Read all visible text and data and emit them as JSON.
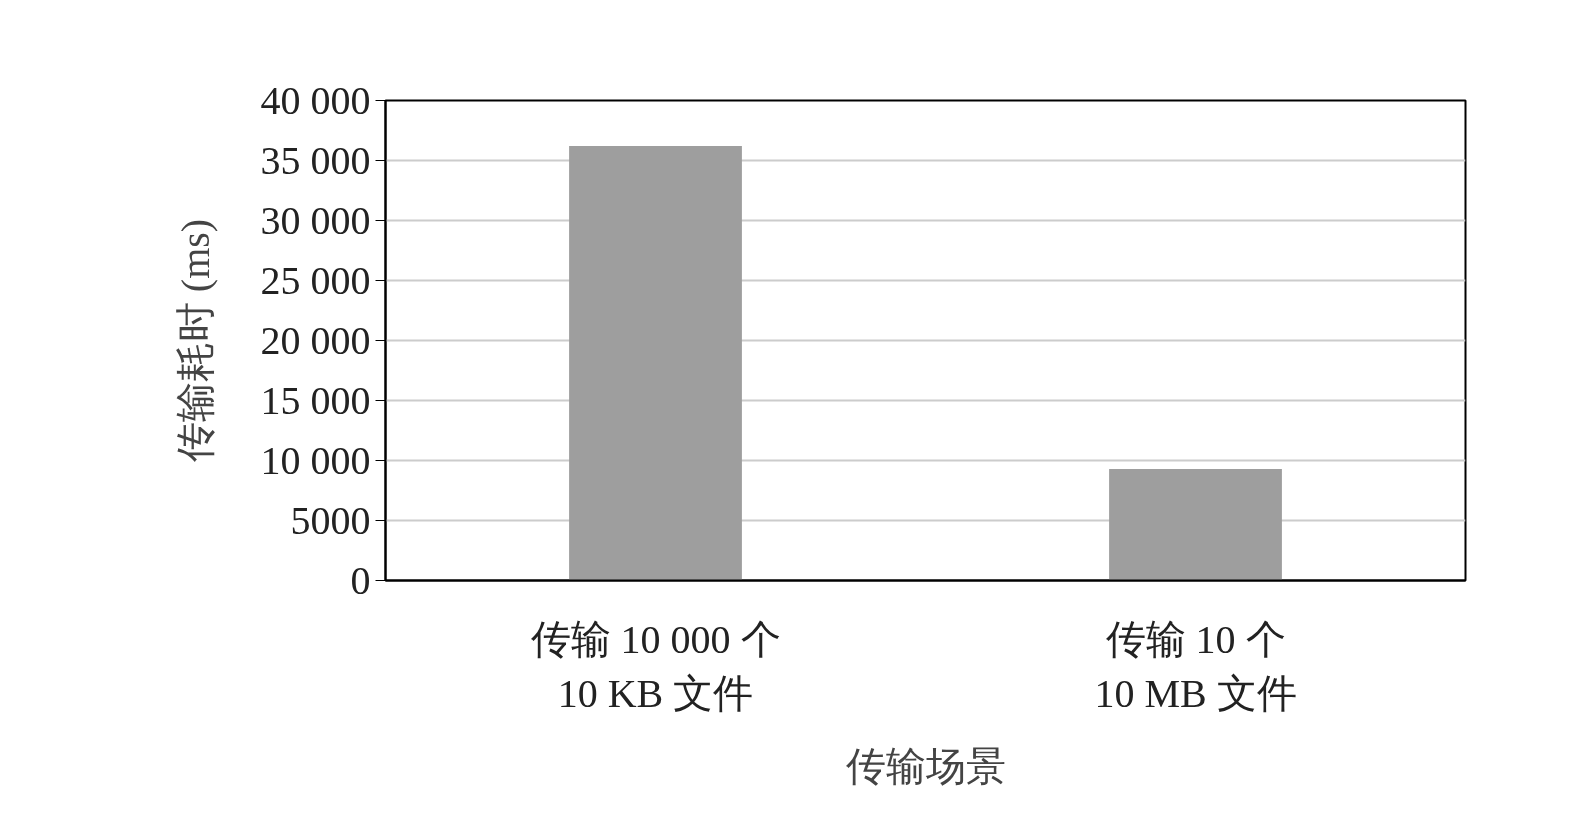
{
  "chart_data": {
    "type": "bar",
    "xlabel": "传输场景",
    "ylabel": "传输耗时 (ms)",
    "categories": [
      "传输 10 000 个\n10 KB 文件",
      "传输 10 个\n10 MB 文件"
    ],
    "values": [
      36200,
      9300
    ],
    "color": "#9e9e9e",
    "ylim": [
      0,
      40000
    ],
    "yticks": [
      0,
      5000,
      {
        "value": 10000,
        "label": "10 000"
      },
      {
        "value": 15000,
        "label": "15 000"
      },
      {
        "value": 20000,
        "label": "20 000"
      },
      {
        "value": 25000,
        "label": "25 000"
      },
      {
        "value": 30000,
        "label": "30 000"
      },
      {
        "value": 35000,
        "label": "35 000"
      },
      {
        "value": 40000,
        "label": "40 000"
      }
    ],
    "grid": "y"
  }
}
